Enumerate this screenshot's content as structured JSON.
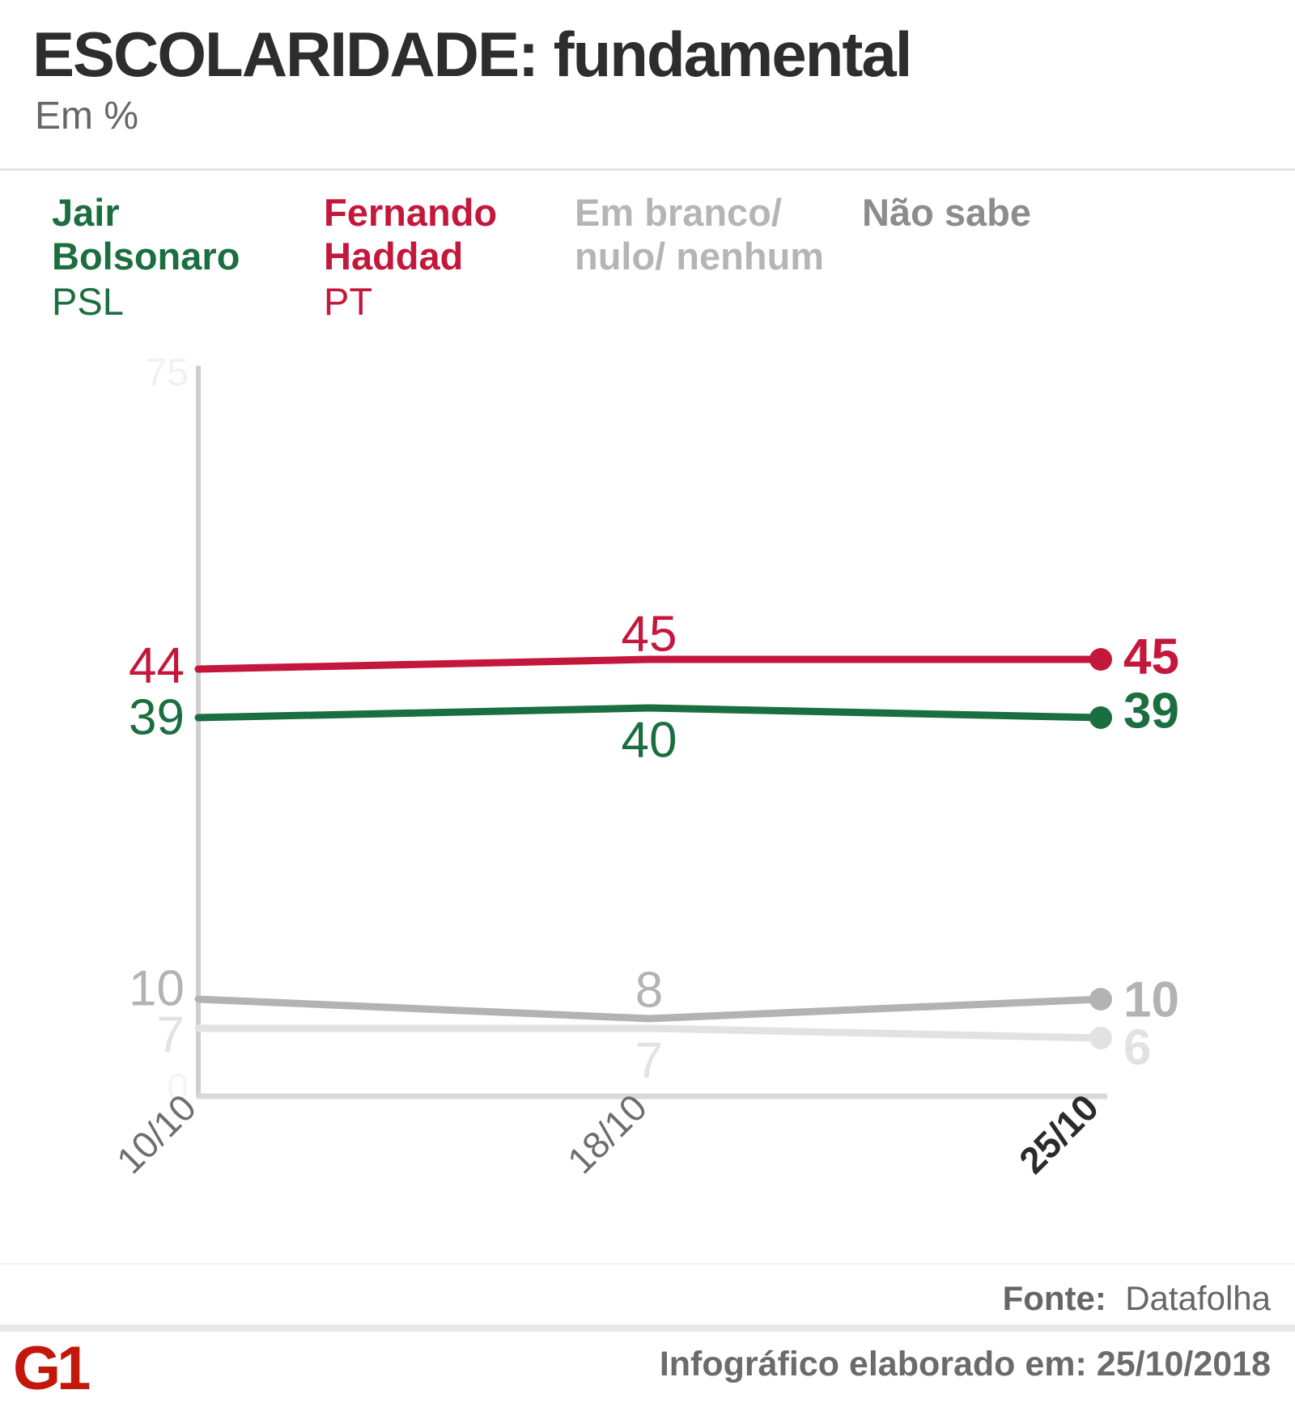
{
  "header": {
    "title": "ESCOLARIDADE: fundamental",
    "subtitle": "Em %"
  },
  "legend": [
    {
      "line1": "Jair",
      "line2": "Bolsonaro",
      "party": "PSL",
      "color": "#1b6e3f"
    },
    {
      "line1": "Fernando",
      "line2": "Haddad",
      "party": "PT",
      "color": "#c4173c"
    },
    {
      "line1": "Em branco/",
      "line2": "nulo/ nenhum",
      "party": "",
      "color": "#b5b5b5"
    },
    {
      "line1": "Não sabe",
      "line2": "",
      "party": "",
      "color": "#8c8c8c"
    }
  ],
  "chart_data": {
    "type": "line",
    "x": [
      "10/10",
      "18/10",
      "25/10"
    ],
    "series": [
      {
        "name": "Jair Bolsonaro (PSL)",
        "values": [
          39,
          40,
          39
        ],
        "color": "#1b6e3f"
      },
      {
        "name": "Fernando Haddad (PT)",
        "values": [
          44,
          45,
          45
        ],
        "color": "#c4173c"
      },
      {
        "name": "Em branco/ nulo/ nenhum",
        "values": [
          10,
          8,
          10
        ],
        "color": "#b3b3b3"
      },
      {
        "name": "Não sabe",
        "values": [
          7,
          7,
          6
        ],
        "color": "#e2e2e2"
      }
    ],
    "ylim": [
      0,
      75
    ],
    "y_axis_labels": {
      "top": "75",
      "bottom": "0"
    },
    "grid": false,
    "legend_position": "top",
    "title": "ESCOLARIDADE: fundamental",
    "ylabel": "Em %"
  },
  "footer": {
    "source_label": "Fonte:",
    "source_value": "Datafolha",
    "credit": "Infográfico elaborado em: 25/10/2018",
    "logo_text": "G1"
  }
}
